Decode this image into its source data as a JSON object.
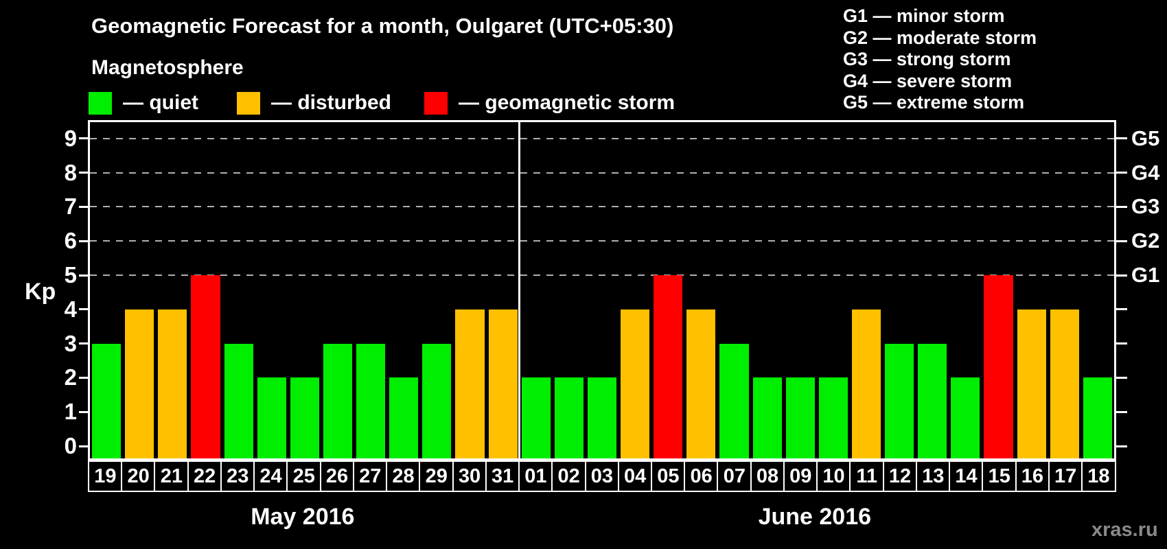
{
  "title": "Geomagnetic Forecast for a month, Oulgaret (UTC+05:30)",
  "magnetosphere_legend": {
    "heading": "Magnetosphere",
    "separator": "—",
    "items": [
      {
        "key": "quiet",
        "label": "quiet",
        "color": "#00ee00"
      },
      {
        "key": "disturbed",
        "label": "disturbed",
        "color": "#ffc000"
      },
      {
        "key": "storm",
        "label": "geomagnetic storm",
        "color": "#ff0000"
      }
    ]
  },
  "storm_scale_legend": {
    "separator": "—",
    "items": [
      {
        "code": "G1",
        "label": "minor storm"
      },
      {
        "code": "G2",
        "label": "moderate storm"
      },
      {
        "code": "G3",
        "label": "strong storm"
      },
      {
        "code": "G4",
        "label": "severe storm"
      },
      {
        "code": "G5",
        "label": "extreme storm"
      }
    ]
  },
  "watermark": "xras.ru",
  "chart_data": {
    "type": "bar",
    "title": "Geomagnetic Forecast for a month, Oulgaret (UTC+05:30)",
    "ylabel": "Kp",
    "xlabel": "",
    "ylim": [
      0,
      9
    ],
    "yticks": [
      0,
      1,
      2,
      3,
      4,
      5,
      6,
      7,
      8,
      9
    ],
    "gridlines_at_kp": [
      5,
      6,
      7,
      8,
      9
    ],
    "grid_style": "dashed horizontal",
    "legend_position": "top-left",
    "right_axis_labels": [
      {
        "kp": 5,
        "label": "G1"
      },
      {
        "kp": 6,
        "label": "G2"
      },
      {
        "kp": 7,
        "label": "G3"
      },
      {
        "kp": 8,
        "label": "G4"
      },
      {
        "kp": 9,
        "label": "G5"
      }
    ],
    "status_colors": {
      "quiet": "#00ee00",
      "disturbed": "#ffc000",
      "storm": "#ff0000"
    },
    "months": [
      {
        "label": "May 2016",
        "days": [
          "19",
          "20",
          "21",
          "22",
          "23",
          "24",
          "25",
          "26",
          "27",
          "28",
          "29",
          "30",
          "31"
        ],
        "values": [
          3,
          4,
          4,
          5,
          3,
          2,
          2,
          3,
          3,
          2,
          3,
          4,
          4
        ],
        "statuses": [
          "quiet",
          "disturbed",
          "disturbed",
          "storm",
          "quiet",
          "quiet",
          "quiet",
          "quiet",
          "quiet",
          "quiet",
          "quiet",
          "disturbed",
          "disturbed"
        ]
      },
      {
        "label": "June 2016",
        "days": [
          "01",
          "02",
          "03",
          "04",
          "05",
          "06",
          "07",
          "08",
          "09",
          "10",
          "11",
          "12",
          "13",
          "14",
          "15",
          "16",
          "17",
          "18"
        ],
        "values": [
          2,
          2,
          2,
          4,
          5,
          4,
          3,
          2,
          2,
          2,
          4,
          3,
          3,
          2,
          5,
          4,
          4,
          2
        ],
        "statuses": [
          "quiet",
          "quiet",
          "quiet",
          "disturbed",
          "storm",
          "disturbed",
          "quiet",
          "quiet",
          "quiet",
          "quiet",
          "disturbed",
          "quiet",
          "quiet",
          "quiet",
          "storm",
          "disturbed",
          "disturbed",
          "quiet"
        ]
      }
    ]
  }
}
